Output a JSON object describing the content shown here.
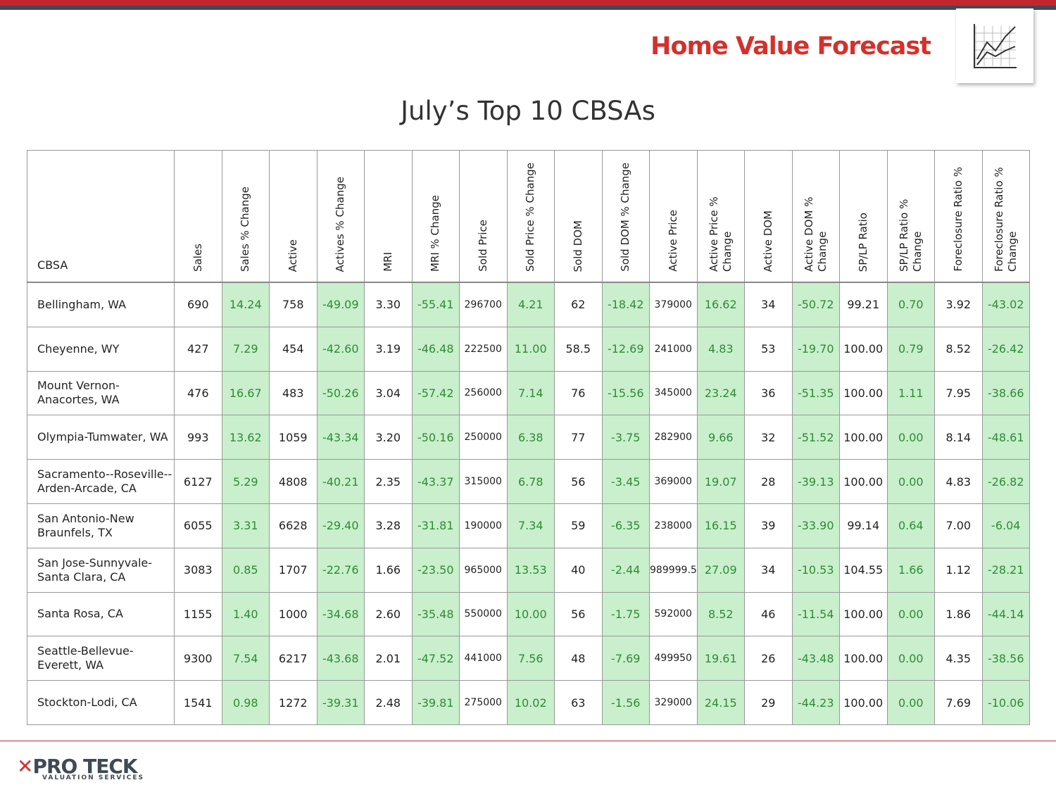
{
  "header": {
    "title": "Home Value Forecast"
  },
  "title": "July’s Top 10 CBSAs",
  "table": {
    "columns": [
      "CBSA",
      "Sales",
      "Sales % Change",
      "Active",
      "Actives % Change",
      "MRI",
      "MRI % Change",
      "Sold Price",
      "Sold Price % Change",
      "Sold DOM",
      "Sold DOM % Change",
      "Active Price",
      "Active Price % Change",
      "Active DOM",
      "Active DOM % Change",
      "SP/LP Ratio",
      "SP/LP Ratio % Change",
      "Foreclosure Ratio %",
      "Foreclosure Ratio % Change"
    ],
    "rows": [
      [
        "Bellingham, WA",
        "690",
        "14.24",
        "758",
        "-49.09",
        "3.30",
        "-55.41",
        "296700",
        "4.21",
        "62",
        "-18.42",
        "379000",
        "16.62",
        "34",
        "-50.72",
        "99.21",
        "0.70",
        "3.92",
        "-43.02"
      ],
      [
        "Cheyenne, WY",
        "427",
        "7.29",
        "454",
        "-42.60",
        "3.19",
        "-46.48",
        "222500",
        "11.00",
        "58.5",
        "-12.69",
        "241000",
        "4.83",
        "53",
        "-19.70",
        "100.00",
        "0.79",
        "8.52",
        "-26.42"
      ],
      [
        "Mount Vernon-Anacortes, WA",
        "476",
        "16.67",
        "483",
        "-50.26",
        "3.04",
        "-57.42",
        "256000",
        "7.14",
        "76",
        "-15.56",
        "345000",
        "23.24",
        "36",
        "-51.35",
        "100.00",
        "1.11",
        "7.95",
        "-38.66"
      ],
      [
        "Olympia-Tumwater, WA",
        "993",
        "13.62",
        "1059",
        "-43.34",
        "3.20",
        "-50.16",
        "250000",
        "6.38",
        "77",
        "-3.75",
        "282900",
        "9.66",
        "32",
        "-51.52",
        "100.00",
        "0.00",
        "8.14",
        "-48.61"
      ],
      [
        "Sacramento--Roseville--Arden-Arcade, CA",
        "6127",
        "5.29",
        "4808",
        "-40.21",
        "2.35",
        "-43.37",
        "315000",
        "6.78",
        "56",
        "-3.45",
        "369000",
        "19.07",
        "28",
        "-39.13",
        "100.00",
        "0.00",
        "4.83",
        "-26.82"
      ],
      [
        "San Antonio-New Braunfels, TX",
        "6055",
        "3.31",
        "6628",
        "-29.40",
        "3.28",
        "-31.81",
        "190000",
        "7.34",
        "59",
        "-6.35",
        "238000",
        "16.15",
        "39",
        "-33.90",
        "99.14",
        "0.64",
        "7.00",
        "-6.04"
      ],
      [
        "San Jose-Sunnyvale-Santa Clara, CA",
        "3083",
        "0.85",
        "1707",
        "-22.76",
        "1.66",
        "-23.50",
        "965000",
        "13.53",
        "40",
        "-2.44",
        "989999.5",
        "27.09",
        "34",
        "-10.53",
        "104.55",
        "1.66",
        "1.12",
        "-28.21"
      ],
      [
        "Santa Rosa, CA",
        "1155",
        "1.40",
        "1000",
        "-34.68",
        "2.60",
        "-35.48",
        "550000",
        "10.00",
        "56",
        "-1.75",
        "592000",
        "8.52",
        "46",
        "-11.54",
        "100.00",
        "0.00",
        "1.86",
        "-44.14"
      ],
      [
        "Seattle-Bellevue-Everett, WA",
        "9300",
        "7.54",
        "6217",
        "-43.68",
        "2.01",
        "-47.52",
        "441000",
        "7.56",
        "48",
        "-7.69",
        "499950",
        "19.61",
        "26",
        "-43.48",
        "100.00",
        "0.00",
        "4.35",
        "-38.56"
      ],
      [
        "Stockton-Lodi, CA",
        "1541",
        "0.98",
        "1272",
        "-39.31",
        "2.48",
        "-39.81",
        "275000",
        "10.02",
        "63",
        "-1.56",
        "329000",
        "24.15",
        "29",
        "-44.23",
        "100.00",
        "0.00",
        "7.69",
        "-10.06"
      ]
    ]
  },
  "footer": {
    "logo": "PRO TECK",
    "tagline": "VALUATION SERVICES"
  }
}
